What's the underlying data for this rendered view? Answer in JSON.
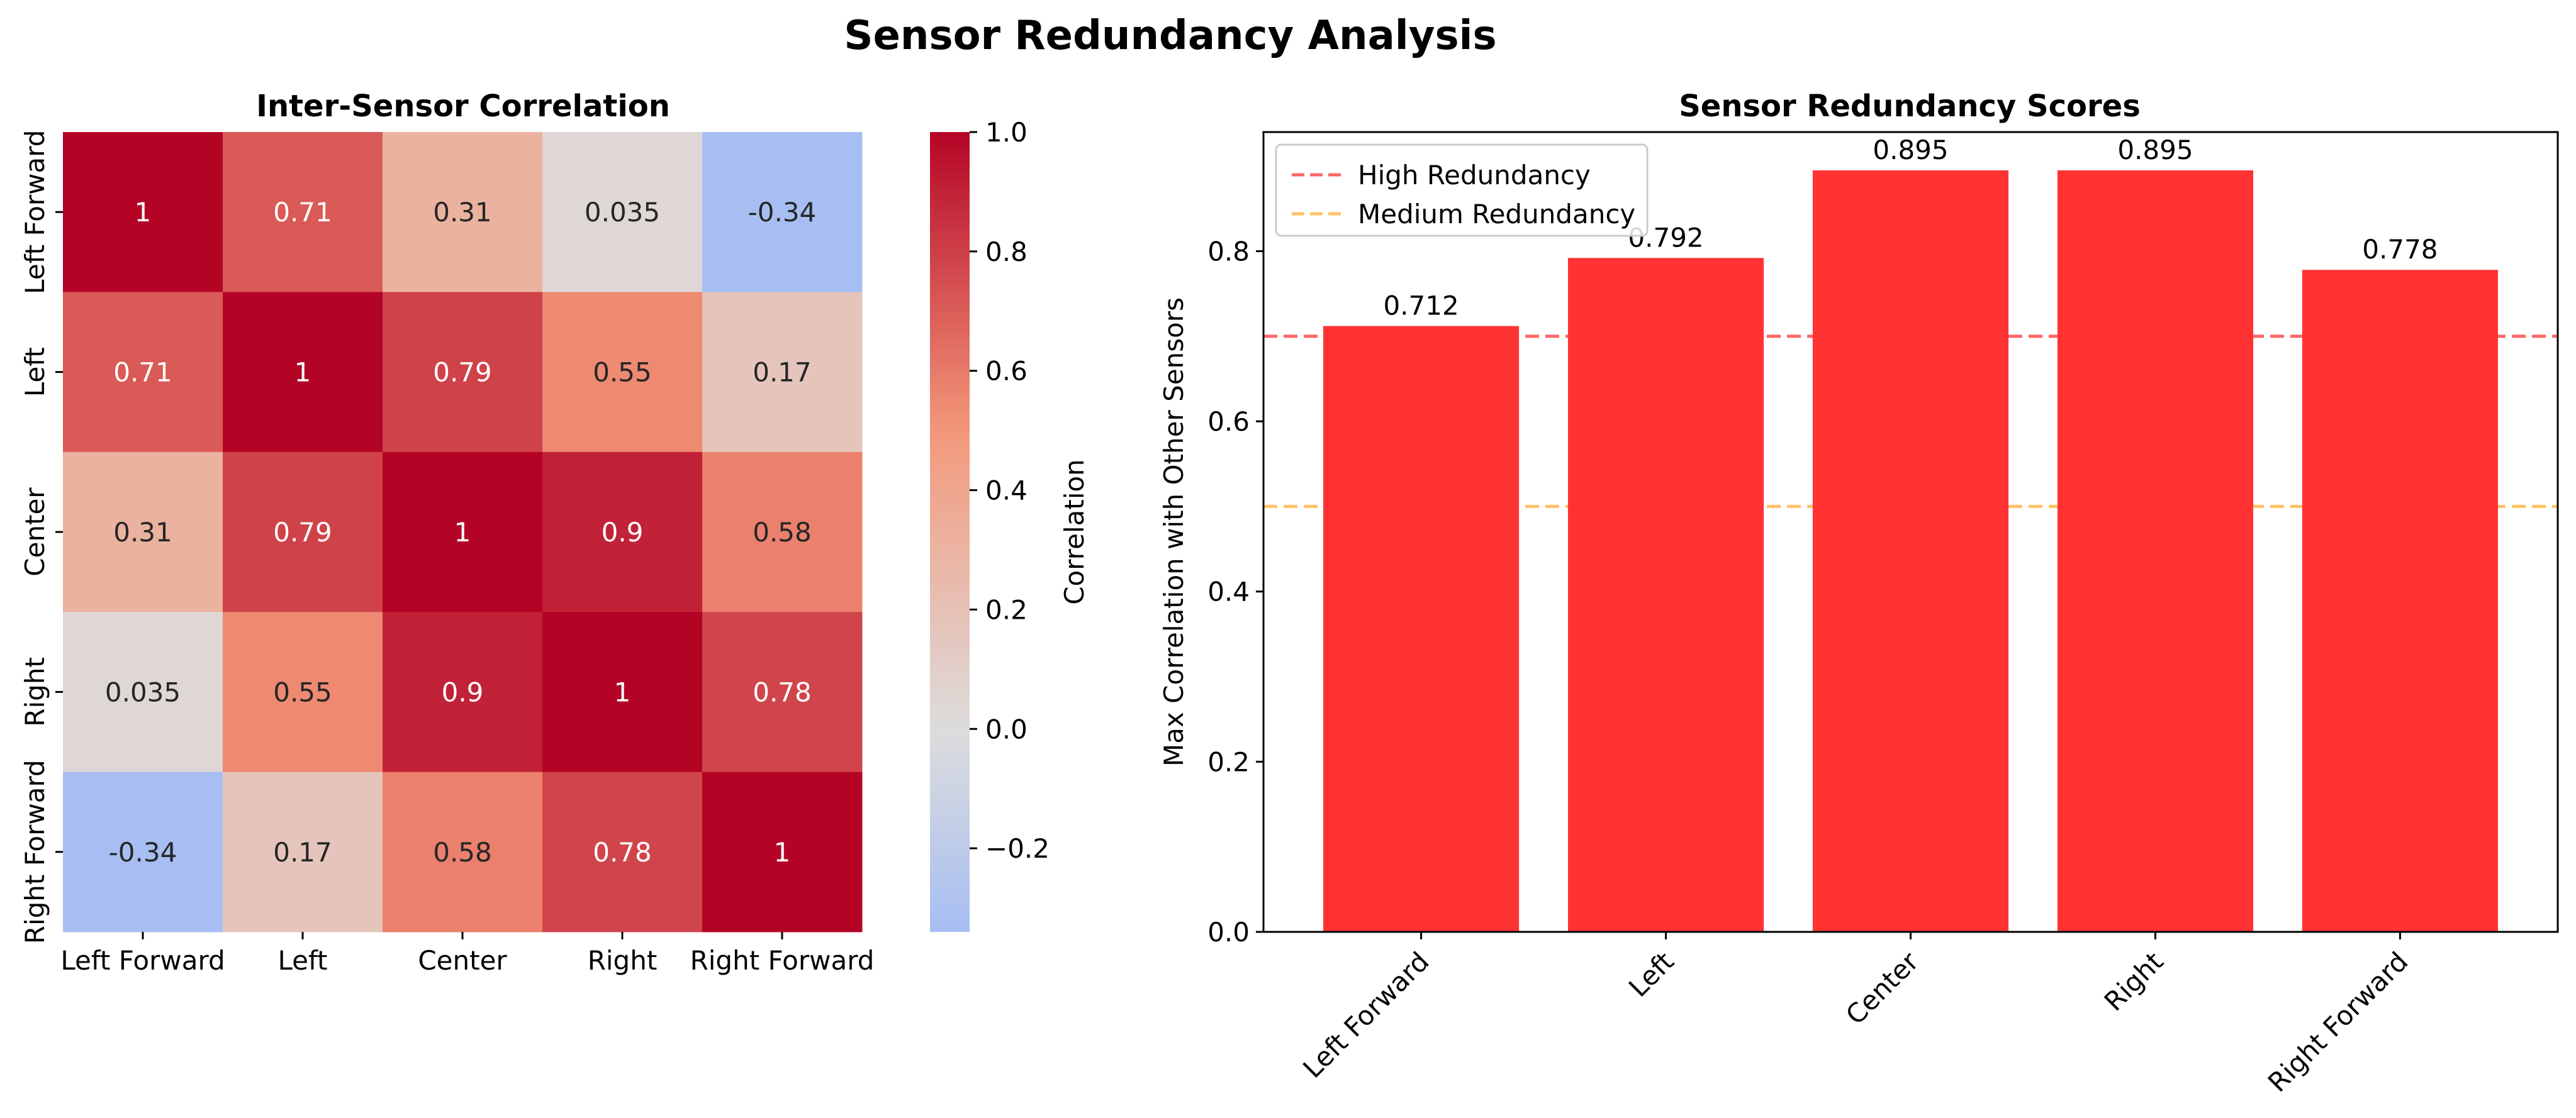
{
  "figure_title": "Sensor Redundancy Analysis",
  "chart_data": [
    {
      "type": "heatmap",
      "title": "Inter-Sensor Correlation",
      "labels": [
        "Left Forward",
        "Left",
        "Center",
        "Right",
        "Right Forward"
      ],
      "matrix": [
        [
          1,
          0.71,
          0.31,
          0.035,
          -0.34
        ],
        [
          0.71,
          1,
          0.79,
          0.55,
          0.17
        ],
        [
          0.31,
          0.79,
          1,
          0.9,
          0.58
        ],
        [
          0.035,
          0.55,
          0.9,
          1,
          0.78
        ],
        [
          -0.34,
          0.17,
          0.58,
          0.78,
          1
        ]
      ],
      "annotations": [
        [
          "1",
          "0.71",
          "0.31",
          "0.035",
          "-0.34"
        ],
        [
          "0.71",
          "1",
          "0.79",
          "0.55",
          "0.17"
        ],
        [
          "0.31",
          "0.79",
          "1",
          "0.9",
          "0.58"
        ],
        [
          "0.035",
          "0.55",
          "0.9",
          "1",
          "0.78"
        ],
        [
          "-0.34",
          "0.17",
          "0.58",
          "0.78",
          "1"
        ]
      ],
      "colormap": "coolwarm",
      "center": 0,
      "vmin": -0.34,
      "vmax": 1.0,
      "colorbar": {
        "label": "Correlation",
        "ticks": [
          1.0,
          0.8,
          0.6,
          0.4,
          0.2,
          0.0,
          -0.2
        ],
        "tick_labels": [
          "1.0",
          "0.8",
          "0.6",
          "0.4",
          "0.2",
          "0.0",
          "−0.2"
        ]
      }
    },
    {
      "type": "bar",
      "title": "Sensor Redundancy Scores",
      "categories": [
        "Left Forward",
        "Left",
        "Center",
        "Right",
        "Right Forward"
      ],
      "values": [
        0.712,
        0.792,
        0.895,
        0.895,
        0.778
      ],
      "value_labels": [
        "0.712",
        "0.792",
        "0.895",
        "0.895",
        "0.778"
      ],
      "bar_color": "#ff3333",
      "xlabel": "",
      "ylabel": "Max Correlation with Other Sensors",
      "ylim": [
        0,
        0.94
      ],
      "yticks": [
        0.0,
        0.2,
        0.4,
        0.6,
        0.8
      ],
      "ytick_labels": [
        "0.0",
        "0.2",
        "0.4",
        "0.6",
        "0.8"
      ],
      "reference_lines": [
        {
          "name": "High Redundancy",
          "y": 0.7,
          "color": "#ff6666",
          "style": "dashed"
        },
        {
          "name": "Medium Redundancy",
          "y": 0.5,
          "color": "#ffc266",
          "style": "dashed"
        }
      ],
      "legend_position": "top-left"
    }
  ]
}
